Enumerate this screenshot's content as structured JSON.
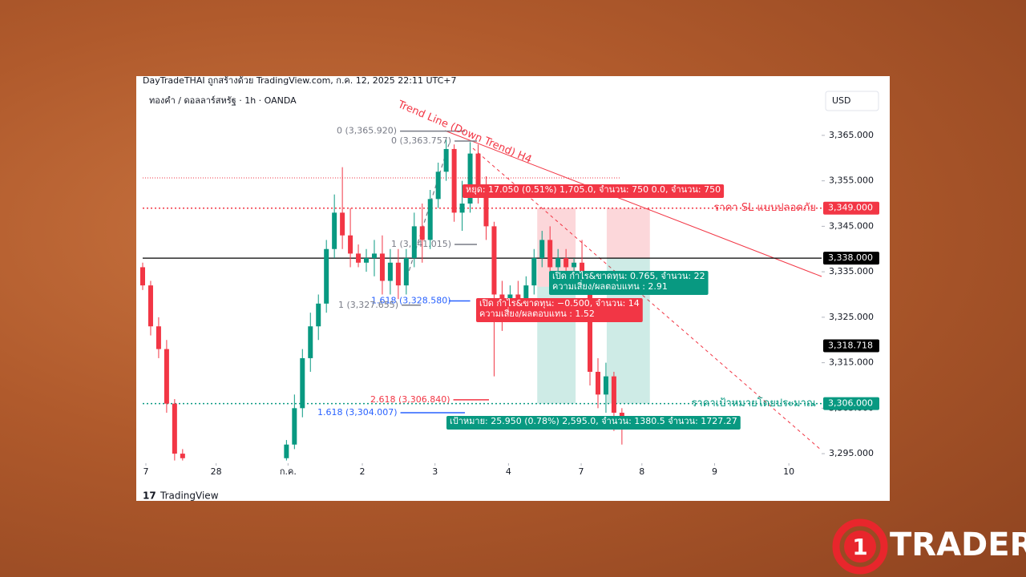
{
  "header": {
    "attribution": "DayTradeTHAI ถูกสร้างด้วย TradingView.com, ก.ค. 12, 2025 22:11 UTC+7",
    "symbol": "ทองคำ / ดอลลาร์สหรัฐ · 1h · OANDA",
    "currency": "USD"
  },
  "footer": {
    "brand": "TradingView"
  },
  "logo": {
    "digit": "1",
    "text": "TRADER"
  },
  "chart_data": {
    "type": "candlestick",
    "x": [
      0,
      1,
      2,
      3,
      4,
      5,
      18,
      19,
      20,
      21,
      22,
      23,
      24,
      25,
      26,
      27,
      28,
      29,
      30,
      31,
      32,
      33,
      34,
      35,
      36,
      37,
      38,
      39,
      40,
      41,
      42,
      43,
      44,
      45,
      46,
      47,
      48,
      49,
      50,
      51,
      52,
      53,
      54,
      55,
      56,
      57,
      58,
      59,
      60
    ],
    "open": [
      3336,
      3332,
      3323,
      3318,
      3306,
      3295,
      3294,
      3297,
      3305,
      3316,
      3323,
      3328,
      3340,
      3348,
      3343,
      3339,
      3337,
      3338,
      3339,
      3333,
      3337,
      3332,
      3338,
      3345,
      3342,
      3351,
      3357,
      3362,
      3348,
      3350,
      3361,
      3353,
      3345,
      3330,
      3327,
      3330,
      3328,
      3332,
      3338,
      3342,
      3336,
      3338,
      3336,
      3337,
      3334,
      3313,
      3308,
      3312,
      3304
    ],
    "high": [
      3337,
      3333,
      3325,
      3320,
      3307,
      3296,
      3298,
      3308,
      3318,
      3326,
      3330,
      3342,
      3352,
      3358,
      3349,
      3341,
      3340,
      3342,
      3343,
      3340,
      3340,
      3340,
      3348,
      3350,
      3353,
      3359,
      3364,
      3363,
      3355,
      3363.5,
      3363,
      3356,
      3346,
      3333,
      3332,
      3333,
      3334,
      3340,
      3344,
      3345,
      3340,
      3340,
      3338,
      3342,
      3335,
      3316,
      3315,
      3313,
      3305
    ],
    "low": [
      3331,
      3321,
      3316,
      3304,
      3293.5,
      3293.5,
      3293.5,
      3296,
      3303,
      3313,
      3320,
      3326,
      3338,
      3340,
      3336,
      3336,
      3335,
      3334,
      3330,
      3330,
      3329,
      3330,
      3336,
      3337,
      3340,
      3349,
      3355,
      3346,
      3344,
      3348,
      3350,
      3342,
      3312,
      3322,
      3325,
      3326,
      3327,
      3330,
      3336,
      3334,
      3334,
      3335,
      3335,
      3333,
      3310,
      3305,
      3304,
      3300,
      3297
    ],
    "close": [
      3332,
      3323,
      3318,
      3306,
      3295,
      3294,
      3297,
      3305,
      3316,
      3323,
      3328,
      3340,
      3348,
      3343,
      3339,
      3337,
      3338,
      3339,
      3333,
      3337,
      3332,
      3338,
      3345,
      3342,
      3351,
      3357,
      3362,
      3348,
      3350,
      3361,
      3353,
      3345,
      3330,
      3327,
      3330,
      3328,
      3332,
      3338,
      3342,
      3336,
      3338,
      3336,
      3337,
      3334,
      3313,
      3308,
      3312,
      3304,
      3302
    ],
    "up_color": "#089981",
    "down_color": "#f23645",
    "xlim": [
      0,
      85
    ],
    "ylim": [
      3292.9,
      3374.5
    ],
    "xticks": [
      {
        "value": 0.4,
        "label": "7"
      },
      {
        "value": 9.2,
        "label": "28"
      },
      {
        "value": 18.2,
        "label": "ก.ค."
      },
      {
        "value": 27.5,
        "label": "2"
      },
      {
        "value": 36.6,
        "label": "3"
      },
      {
        "value": 45.8,
        "label": "4"
      },
      {
        "value": 54.9,
        "label": "7"
      },
      {
        "value": 62.5,
        "label": "8"
      },
      {
        "value": 71.6,
        "label": "9"
      },
      {
        "value": 80.9,
        "label": "10"
      }
    ],
    "yticks": [
      {
        "value": 3365,
        "label": "3,365.000"
      },
      {
        "value": 3355,
        "label": "3,355.000"
      },
      {
        "value": 3345,
        "label": "3,345.000"
      },
      {
        "value": 3335,
        "label": "3,335.000"
      },
      {
        "value": 3325,
        "label": "3,325.000"
      },
      {
        "value": 3315,
        "label": "3,315.000"
      },
      {
        "value": 3305,
        "label": "3,305.000"
      },
      {
        "value": 3295,
        "label": "3,295.000"
      }
    ],
    "levels": [
      {
        "value": 3349,
        "label": "3,349.000",
        "text": "ราคา SL แบบปลอดภัย",
        "color": "#f23645",
        "style": "dotted"
      },
      {
        "value": 3338,
        "label": "3,338.000",
        "color": "#000000",
        "style": "solid"
      },
      {
        "value": 3306,
        "label": "3,306.000",
        "text": "ราคาเป้าหมายโดยประมาณ",
        "color": "#089981",
        "style": "dotted"
      }
    ],
    "current_price": {
      "value": 3318.718,
      "label": "3,318.718"
    },
    "fib_labels": [
      {
        "value": 3365.92,
        "label": "0 (3,365.920)",
        "color": "#787b86"
      },
      {
        "value": 3363.757,
        "label": "0 (3,363.757)",
        "color": "#787b86"
      },
      {
        "value": 3341.015,
        "label": "1 (3,341.015)",
        "color": "#787b86"
      },
      {
        "value": 3328.58,
        "label": "1.618 (3,328.580)",
        "color": "#2962ff"
      },
      {
        "value": 3327.655,
        "label": "1 (3,327.655)",
        "color": "#787b86"
      },
      {
        "value": 3306.84,
        "label": "2.618 (3,306.840)",
        "color": "#f23645"
      },
      {
        "value": 3304.007,
        "label": "1.618 (3,304.007)",
        "color": "#2962ff"
      }
    ],
    "positions": [
      {
        "x0": 49.4,
        "x1": 54.2,
        "stop": 3349,
        "entry": 3331.7,
        "target": 3306
      },
      {
        "x0": 58.1,
        "x1": 63.5,
        "stop": 3349,
        "entry": 3338,
        "target": 3306
      }
    ],
    "trend_label": "Trend Line (Down Trend) H4",
    "trade_labels": [
      {
        "lines": [
          "หยุด: 17.050 (0.51%) 1,705.0, จำนวน: 750  0.0, จำนวน: 750"
        ],
        "color": "#f23645"
      },
      {
        "lines": [
          "เปิด กำไร&ขาดทุน: 0.765, จำนวน: 22",
          "ความเสี่ยง/ผลตอบแทน : 2.91"
        ],
        "color": "#089981"
      },
      {
        "lines": [
          "เปิด กำไร&ขาดทุน: −0.500, จำนวน: 14",
          "ความเสี่ยง/ผลตอบแทน : 1.52"
        ],
        "color": "#f23645"
      },
      {
        "lines": [
          "เป้าหมาย: 25.950 (0.78%) 2,595.0, จำนวน: 1380.5  จำนวน: 1727.27"
        ],
        "color": "#089981"
      }
    ]
  }
}
